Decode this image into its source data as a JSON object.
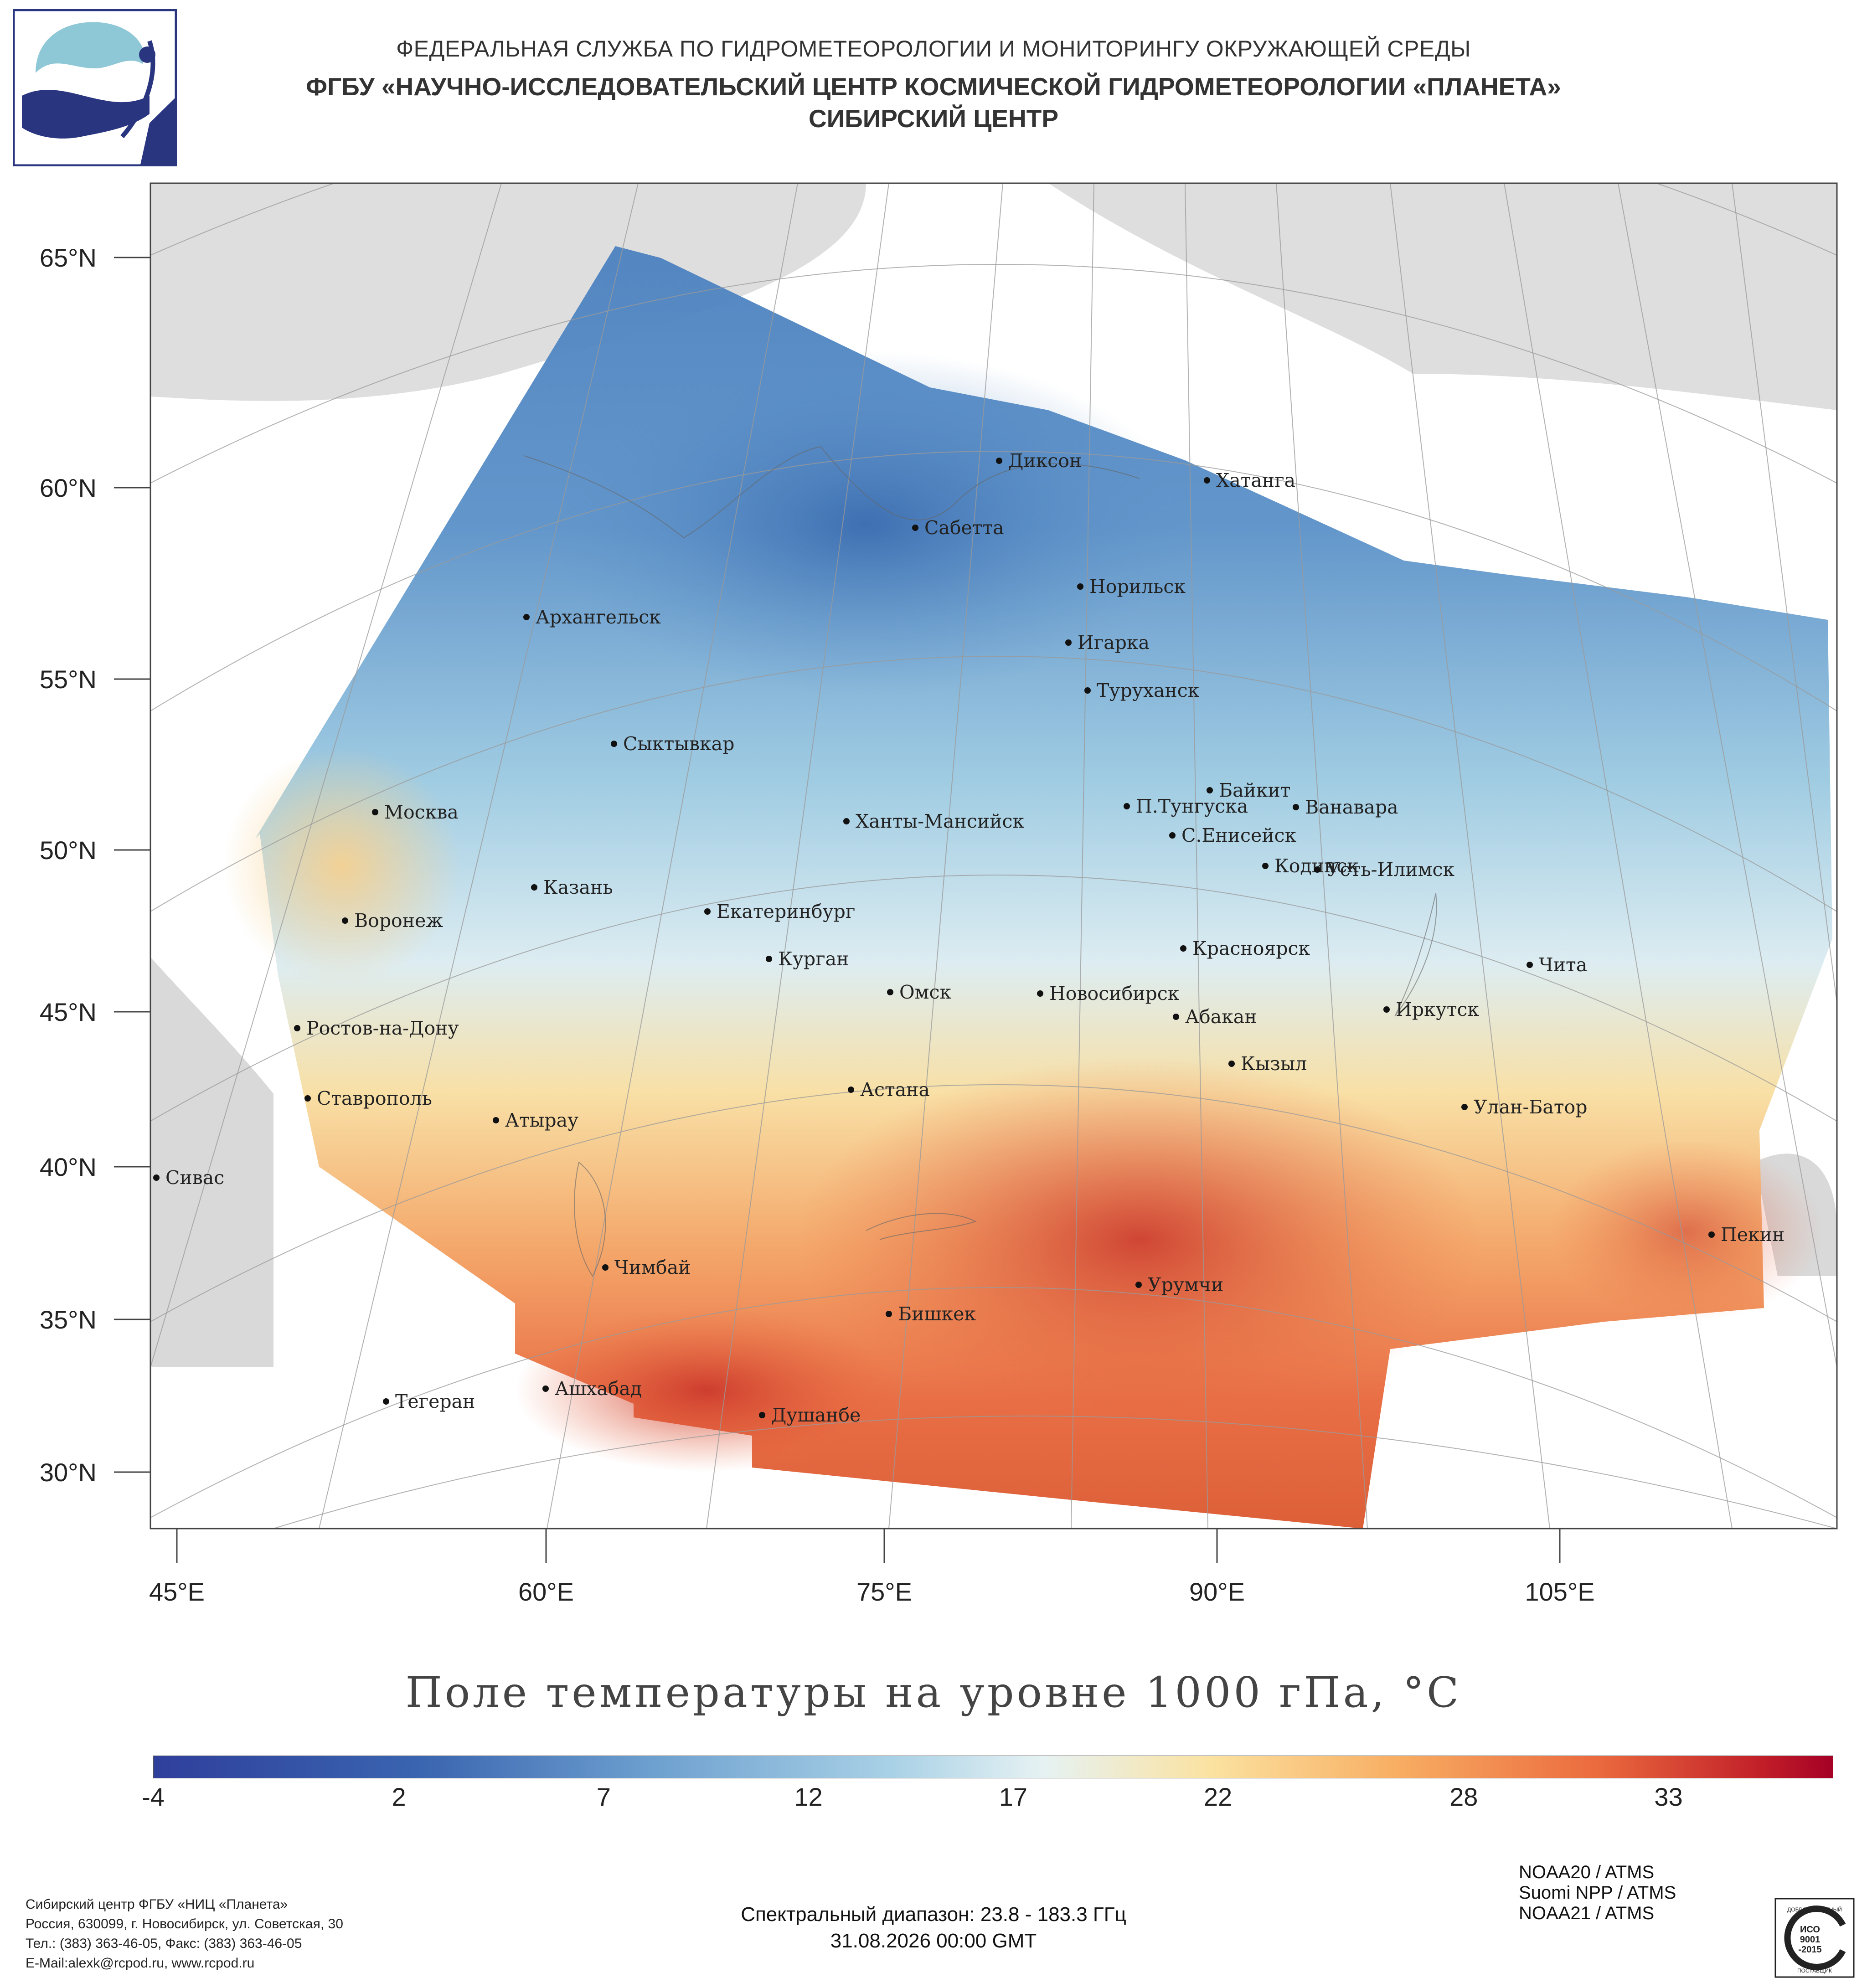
{
  "header": {
    "line1": "ФЕДЕРАЛЬНАЯ СЛУЖБА ПО ГИДРОМЕТЕОРОЛОГИИ И МОНИТОРИНГУ ОКРУЖАЮЩЕЙ СРЕДЫ",
    "line2": "ФГБУ «НАУЧНО-ИССЛЕДОВАТЕЛЬСКИЙ ЦЕНТР КОСМИЧЕСКОЙ ГИДРОМЕТЕОРОЛОГИИ «ПЛАНЕТА»",
    "line3": "СИБИРСКИЙ ЦЕНТР"
  },
  "map": {
    "lat_labels": [
      "65°N",
      "60°N",
      "55°N",
      "50°N",
      "45°N",
      "40°N",
      "35°N",
      "30°N"
    ],
    "lon_labels": [
      "45°E",
      "60°E",
      "75°E",
      "90°E",
      "105°E"
    ],
    "cities": [
      {
        "name": "Диксон",
        "lat": 73.5,
        "lon": 80.5
      },
      {
        "name": "Хатанга",
        "lat": 72.0,
        "lon": 102.5
      },
      {
        "name": "Сабетта",
        "lat": 71.3,
        "lon": 72.1
      },
      {
        "name": "Норильск",
        "lat": 69.3,
        "lon": 88.2
      },
      {
        "name": "Игарка",
        "lat": 67.5,
        "lon": 86.6
      },
      {
        "name": "Архангельск",
        "lat": 64.5,
        "lon": 40.5
      },
      {
        "name": "Туруханск",
        "lat": 65.8,
        "lon": 87.9
      },
      {
        "name": "Сыктывкар",
        "lat": 61.7,
        "lon": 50.8
      },
      {
        "name": "Байкит",
        "lat": 61.7,
        "lon": 96.4
      },
      {
        "name": "П.Тунгуска",
        "lat": 61.6,
        "lon": 90.0
      },
      {
        "name": "Ванавара",
        "lat": 60.3,
        "lon": 102.3
      },
      {
        "name": "Москва",
        "lat": 55.8,
        "lon": 37.6
      },
      {
        "name": "Ханты-Мансийск",
        "lat": 61.0,
        "lon": 69.0
      },
      {
        "name": "С.Енисейск",
        "lat": 58.5,
        "lon": 92.2
      },
      {
        "name": "Кодинск",
        "lat": 58.6,
        "lon": 99.2
      },
      {
        "name": "Усть-Илимск",
        "lat": 58.0,
        "lon": 102.7
      },
      {
        "name": "Казань",
        "lat": 55.8,
        "lon": 49.1
      },
      {
        "name": "Екатеринбург",
        "lat": 56.8,
        "lon": 60.6
      },
      {
        "name": "Воронеж",
        "lat": 51.7,
        "lon": 39.2
      },
      {
        "name": "Курган",
        "lat": 55.4,
        "lon": 65.3
      },
      {
        "name": "Красноярск",
        "lat": 56.0,
        "lon": 92.9
      },
      {
        "name": "Чита",
        "lat": 52.0,
        "lon": 113.5
      },
      {
        "name": "Омск",
        "lat": 55.0,
        "lon": 73.4
      },
      {
        "name": "Новосибирск",
        "lat": 55.0,
        "lon": 82.9
      },
      {
        "name": "Иркутск",
        "lat": 52.3,
        "lon": 104.3
      },
      {
        "name": "Ростов-на-Дону",
        "lat": 47.2,
        "lon": 39.7
      },
      {
        "name": "Абакан",
        "lat": 53.7,
        "lon": 91.4
      },
      {
        "name": "Кызыл",
        "lat": 51.7,
        "lon": 94.4
      },
      {
        "name": "Ставрополь",
        "lat": 45.0,
        "lon": 42.0
      },
      {
        "name": "Астана",
        "lat": 51.2,
        "lon": 71.4
      },
      {
        "name": "Улан-Батор",
        "lat": 47.9,
        "lon": 106.9
      },
      {
        "name": "Атырау",
        "lat": 47.1,
        "lon": 51.9
      },
      {
        "name": "Сивас",
        "lat": 39.7,
        "lon": 37.0
      },
      {
        "name": "Пекин",
        "lat": 39.9,
        "lon": 116.4
      },
      {
        "name": "Чимбай",
        "lat": 42.9,
        "lon": 59.8
      },
      {
        "name": "Урумчи",
        "lat": 43.8,
        "lon": 87.6
      },
      {
        "name": "Бишкек",
        "lat": 42.9,
        "lon": 74.6
      },
      {
        "name": "Ашхабад",
        "lat": 37.9,
        "lon": 58.4
      },
      {
        "name": "Тегеран",
        "lat": 35.7,
        "lon": 51.4
      },
      {
        "name": "Душанбе",
        "lat": 38.6,
        "lon": 68.8
      }
    ]
  },
  "title": "Поле температуры на уровне 1000 гПа, °C",
  "colorbar": {
    "min": -4,
    "max": 37,
    "ticks": [
      "-4",
      "2",
      "7",
      "12",
      "17",
      "22",
      "28",
      "33"
    ],
    "colors": [
      "#2f3f9c",
      "#3a65b0",
      "#6fa1d0",
      "#a9d1e6",
      "#e6f2f3",
      "#fbe2a0",
      "#f8ae63",
      "#eb6a3e",
      "#c01d28",
      "#a50026"
    ]
  },
  "footer": {
    "org_lines": [
      "Сибирский центр ФГБУ «НИЦ «Планета»",
      "Россия, 630099, г. Новосибирск, ул. Советская, 30",
      "Тел.: (383) 363-46-05, Факс: (383) 363-46-05",
      "E-Mail:alexk@rcpod.ru, www.rcpod.ru"
    ],
    "spectral": "Спектральный диапазон: 23.8 - 183.3 ГГц",
    "datetime": "31.08.2026 00:00 GMT",
    "instruments": [
      "NOAA20 / ATMS",
      "Suomi NPP / ATMS",
      "NOAA21 / ATMS"
    ],
    "cert_lines": [
      "ДОБРОСОВЕСТНЫЙ",
      "ИСО",
      "9001",
      "-2015",
      "ПОСТАВЩИК"
    ]
  }
}
